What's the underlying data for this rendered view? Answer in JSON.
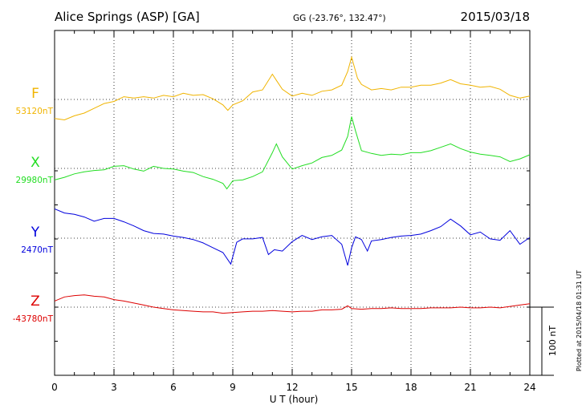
{
  "header": {
    "station": "Alice Springs (ASP)  [GA]",
    "coords": "GG (-23.76°, 132.47°)",
    "date": "2015/03/18"
  },
  "side_note": "Plotted at 2015/04/18 01:31  UT",
  "chart_data": {
    "type": "line",
    "xlabel": "U T (hour)",
    "xlim": [
      0,
      24
    ],
    "xticks": [
      0,
      3,
      6,
      9,
      12,
      15,
      18,
      21,
      24
    ],
    "xtick_labels": [
      "0",
      "3",
      "6",
      "9",
      "12",
      "15",
      "18",
      "21",
      "24"
    ],
    "grid": true,
    "scale_bar": {
      "label": "100 nT",
      "value": 100
    },
    "ylim_offset_nT": [
      -370,
      428
    ],
    "series": [
      {
        "name": "F",
        "baseline_label": "53120nT",
        "baseline": 53120,
        "color": "#f0b400",
        "x": [
          0,
          0.5,
          1,
          1.5,
          2,
          2.5,
          3,
          3.5,
          4,
          4.5,
          5,
          5.5,
          6,
          6.5,
          7,
          7.5,
          8,
          8.5,
          8.75,
          9,
          9.5,
          10,
          10.5,
          11,
          11.2,
          11.5,
          12,
          12.5,
          13,
          13.5,
          14,
          14.5,
          14.8,
          15,
          15.3,
          15.5,
          16,
          16.5,
          17,
          17.5,
          18,
          18.5,
          19,
          19.5,
          20,
          20.5,
          21,
          21.5,
          22,
          22.5,
          23,
          23.5,
          24
        ],
        "values": [
          -28,
          -30,
          -24,
          -20,
          -13,
          -6,
          -3,
          4,
          2,
          4,
          2,
          6,
          4,
          9,
          6,
          7,
          1,
          -8,
          -16,
          -8,
          -2,
          11,
          14,
          37,
          28,
          15,
          5,
          9,
          6,
          12,
          14,
          21,
          41,
          62,
          31,
          22,
          14,
          16,
          14,
          18,
          18,
          21,
          21,
          24,
          29,
          23,
          21,
          18,
          19,
          15,
          6,
          2,
          5
        ]
      },
      {
        "name": "X",
        "baseline_label": "29980nT",
        "baseline": 29980,
        "color": "#22dd22",
        "x": [
          0,
          0.5,
          1,
          1.5,
          2,
          2.5,
          3,
          3.5,
          4,
          4.5,
          5,
          5.5,
          6,
          6.5,
          7,
          7.5,
          8,
          8.5,
          8.7,
          9,
          9.5,
          10,
          10.5,
          11,
          11.2,
          11.5,
          12,
          12.5,
          13,
          13.5,
          14,
          14.5,
          14.8,
          15,
          15.2,
          15.5,
          16,
          16.5,
          17,
          17.5,
          18,
          18.5,
          19,
          19.5,
          20,
          20.5,
          21,
          21.5,
          22,
          22.5,
          23,
          23.5,
          24
        ],
        "values": [
          -17,
          -13,
          -8,
          -5,
          -3,
          -2,
          3,
          4,
          -1,
          -4,
          3,
          0,
          -1,
          -4,
          -6,
          -12,
          -16,
          -22,
          -30,
          -18,
          -17,
          -12,
          -5,
          23,
          36,
          17,
          -1,
          4,
          8,
          16,
          19,
          27,
          47,
          76,
          55,
          26,
          22,
          19,
          21,
          20,
          23,
          23,
          26,
          31,
          36,
          29,
          24,
          21,
          19,
          17,
          10,
          14,
          20
        ]
      },
      {
        "name": "Y",
        "baseline_label": "2470nT",
        "baseline": 2470,
        "color": "#0000dd",
        "x": [
          0,
          0.5,
          1,
          1.5,
          2,
          2.5,
          3,
          3.5,
          4,
          4.5,
          5,
          5.5,
          6,
          6.5,
          7,
          7.5,
          8,
          8.5,
          8.9,
          9.2,
          9.5,
          10,
          10.5,
          10.8,
          11.1,
          11.5,
          12,
          12.5,
          13,
          13.5,
          14,
          14.5,
          14.8,
          15,
          15.2,
          15.5,
          15.8,
          16,
          16.5,
          17,
          17.5,
          18,
          18.5,
          19,
          19.5,
          20,
          20.5,
          21,
          21.5,
          22,
          22.5,
          23,
          23.5,
          24
        ],
        "values": [
          43,
          37,
          35,
          31,
          25,
          29,
          29,
          24,
          18,
          11,
          7,
          6,
          3,
          1,
          -2,
          -7,
          -14,
          -21,
          -38,
          -6,
          -1,
          -1,
          1,
          -24,
          -17,
          -19,
          -5,
          4,
          -2,
          2,
          4,
          -9,
          -40,
          -14,
          2,
          -2,
          -19,
          -4,
          -2,
          1,
          3,
          4,
          6,
          11,
          17,
          28,
          18,
          5,
          9,
          -1,
          -3,
          11,
          -9,
          1
        ]
      },
      {
        "name": "Z",
        "baseline_label": "-43780nT",
        "baseline": -43780,
        "color": "#dd0000",
        "x": [
          0,
          0.5,
          1,
          1.5,
          2,
          2.5,
          3,
          3.5,
          4,
          4.5,
          5,
          5.5,
          6,
          6.5,
          7,
          7.5,
          8,
          8.5,
          9,
          9.5,
          10,
          10.5,
          11,
          11.5,
          12,
          12.5,
          13,
          13.5,
          14,
          14.5,
          14.8,
          15,
          15.5,
          16,
          16.5,
          17,
          17.5,
          18,
          18.5,
          19,
          19.5,
          20,
          20.5,
          21,
          21.5,
          22,
          22.5,
          23,
          23.5,
          24
        ],
        "values": [
          9,
          15,
          17,
          18,
          16,
          15,
          11,
          9,
          6,
          3,
          0,
          -2,
          -4,
          -5,
          -6,
          -7,
          -7,
          -9,
          -8,
          -7,
          -6,
          -6,
          -5,
          -6,
          -7,
          -6,
          -6,
          -4,
          -4,
          -3,
          2,
          -2,
          -3,
          -2,
          -2,
          -1,
          -2,
          -2,
          -2,
          -1,
          -1,
          -1,
          0,
          -1,
          -1,
          0,
          -1,
          1,
          3,
          5
        ]
      }
    ]
  }
}
